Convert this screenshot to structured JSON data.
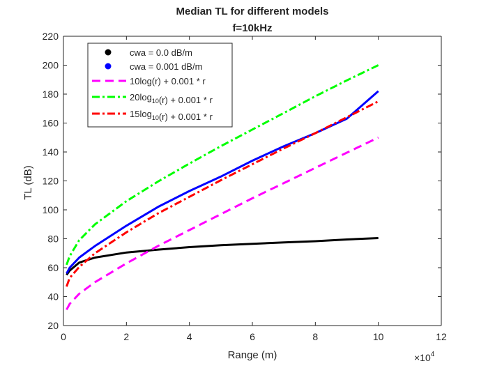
{
  "chart_data": {
    "type": "line",
    "title": "Median TL for different models",
    "subtitle": "f=10kHz",
    "xlabel": "Range (m)",
    "ylabel": "TL (dB)",
    "x_exponent_label": "×10",
    "x_exponent_power": "4",
    "x_scale_factor": 10000,
    "xlim": [
      0,
      120000
    ],
    "ylim": [
      20,
      220
    ],
    "x_ticks": [
      0,
      20000,
      40000,
      60000,
      80000,
      100000,
      120000
    ],
    "x_tick_labels": [
      "0",
      "2",
      "4",
      "6",
      "8",
      "10",
      "12"
    ],
    "y_ticks": [
      20,
      40,
      60,
      80,
      100,
      120,
      140,
      160,
      180,
      200,
      220
    ],
    "y_tick_labels": [
      "20",
      "40",
      "60",
      "80",
      "100",
      "120",
      "140",
      "160",
      "180",
      "200",
      "220"
    ],
    "grid": false,
    "legend_position": "top-left",
    "x": [
      1000,
      2000,
      5000,
      10000,
      20000,
      30000,
      40000,
      50000,
      60000,
      70000,
      80000,
      90000,
      100000
    ],
    "series": [
      {
        "name": "cwa = 0.0 dB/m",
        "legend_segments": [
          {
            "text": "cwa = 0.0 dB/m",
            "sub": ""
          }
        ],
        "color": "#000000",
        "style": "solid",
        "legend_marker": "dot",
        "values": [
          55,
          58,
          63.5,
          67,
          70.5,
          72.5,
          74.2,
          75.5,
          76.5,
          77.5,
          78.3,
          79.5,
          80.5
        ]
      },
      {
        "name": "cwa = 0.001 dB/m",
        "legend_segments": [
          {
            "text": "cwa = 0.001 dB/m",
            "sub": ""
          }
        ],
        "color": "#0000ff",
        "style": "solid",
        "legend_marker": "dot",
        "values": [
          56,
          60,
          67,
          75,
          89,
          102,
          113,
          123,
          134,
          144,
          153,
          163,
          182
        ]
      },
      {
        "name": "10log(r) + 0.001 * r",
        "legend_segments": [
          {
            "text": "10log(r) + 0.001 * r",
            "sub": ""
          }
        ],
        "color": "#ff00ff",
        "style": "dashed",
        "legend_marker": "line",
        "values": [
          31,
          35,
          42,
          50,
          63,
          75,
          86,
          97,
          108,
          118.5,
          129,
          139.5,
          150
        ]
      },
      {
        "name": "20log10(r) + 0.001 * r",
        "legend_segments": [
          {
            "text": "20log",
            "sub": "10"
          },
          {
            "text": "(r) + 0.001 * r",
            "sub": ""
          }
        ],
        "color": "#00ff00",
        "style": "dashdot",
        "legend_marker": "line",
        "values": [
          62,
          68,
          79,
          90,
          106,
          119.5,
          132,
          144,
          155.5,
          167,
          178.5,
          189.5,
          200
        ]
      },
      {
        "name": "15log10(r) + 0.001 * r",
        "legend_segments": [
          {
            "text": "15log",
            "sub": "10"
          },
          {
            "text": "(r) + 0.001 * r",
            "sub": ""
          }
        ],
        "color": "#ff0000",
        "style": "dashdot",
        "legend_marker": "line",
        "values": [
          47,
          53,
          60.5,
          70,
          84.5,
          97.5,
          109,
          120.5,
          131.5,
          142.5,
          153,
          164,
          175
        ]
      }
    ]
  }
}
